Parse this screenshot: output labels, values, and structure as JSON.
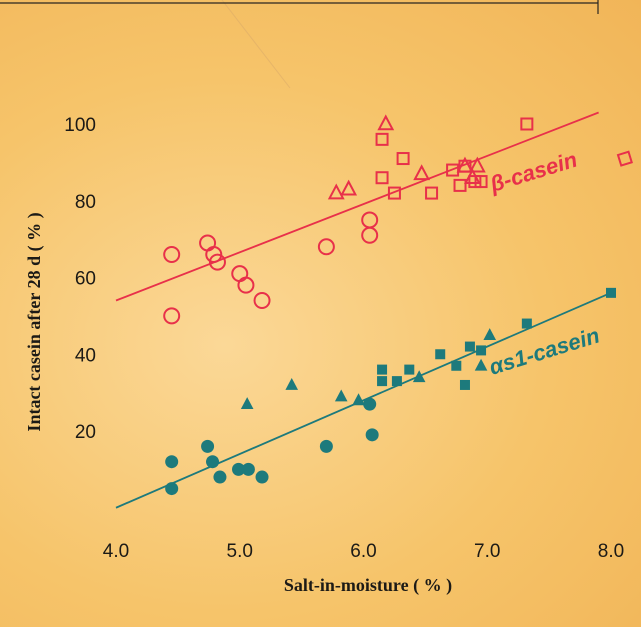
{
  "colors": {
    "beta": "#e8304a",
    "alpha": "#1d7a7c",
    "text": "#1c1a16"
  },
  "chart_data": {
    "type": "scatter",
    "title": "",
    "xlabel": "Salt-in-moisture ( % )",
    "ylabel": "Intact casein after 28 d ( % )",
    "xlim": [
      4.0,
      8.0
    ],
    "ylim": [
      0,
      110
    ],
    "x_ticks": [
      "4.0",
      "5.0",
      "6.0",
      "7.0",
      "8.0"
    ],
    "y_ticks": [
      "20",
      "40",
      "60",
      "80",
      "100"
    ],
    "x_tick_values": [
      4.0,
      5.0,
      6.0,
      7.0,
      8.0
    ],
    "y_tick_values": [
      20,
      40,
      60,
      80,
      100
    ],
    "grid": false,
    "series": [
      {
        "name": "β-casein",
        "color": "#e8304a",
        "filled": false,
        "circles": [
          [
            4.45,
            66
          ],
          [
            4.45,
            50
          ],
          [
            4.74,
            69
          ],
          [
            4.79,
            66
          ],
          [
            4.82,
            64
          ],
          [
            5.0,
            61
          ],
          [
            5.05,
            58
          ],
          [
            5.18,
            54
          ],
          [
            5.7,
            68
          ],
          [
            6.05,
            75
          ],
          [
            6.05,
            71
          ]
        ],
        "triangles": [
          [
            5.78,
            82
          ],
          [
            5.88,
            83
          ],
          [
            6.18,
            100
          ],
          [
            6.47,
            87
          ],
          [
            6.82,
            89
          ],
          [
            6.88,
            86
          ],
          [
            6.92,
            89
          ]
        ],
        "squares": [
          [
            6.15,
            96
          ],
          [
            6.15,
            86
          ],
          [
            6.25,
            82
          ],
          [
            6.32,
            91
          ],
          [
            6.55,
            82
          ],
          [
            6.72,
            88
          ],
          [
            6.78,
            84
          ],
          [
            6.82,
            89
          ],
          [
            6.9,
            85
          ],
          [
            6.95,
            85
          ],
          [
            7.32,
            100
          ]
        ],
        "trend": [
          [
            4.0,
            54
          ],
          [
            7.9,
            103
          ]
        ]
      },
      {
        "name": "αs1-casein",
        "color": "#1d7a7c",
        "filled": true,
        "circles": [
          [
            4.45,
            12
          ],
          [
            4.45,
            5
          ],
          [
            4.74,
            16
          ],
          [
            4.78,
            12
          ],
          [
            4.84,
            8
          ],
          [
            4.99,
            10
          ],
          [
            5.07,
            10
          ],
          [
            5.18,
            8
          ],
          [
            5.7,
            16
          ],
          [
            6.05,
            27
          ],
          [
            6.07,
            19
          ]
        ],
        "triangles": [
          [
            5.06,
            27
          ],
          [
            5.42,
            32
          ],
          [
            5.82,
            29
          ],
          [
            5.96,
            28
          ],
          [
            6.45,
            34
          ],
          [
            6.95,
            37
          ],
          [
            7.02,
            45
          ]
        ],
        "squares": [
          [
            6.15,
            36
          ],
          [
            6.15,
            33
          ],
          [
            6.27,
            33
          ],
          [
            6.37,
            36
          ],
          [
            6.62,
            40
          ],
          [
            6.75,
            37
          ],
          [
            6.82,
            32
          ],
          [
            6.86,
            42
          ],
          [
            6.95,
            41
          ],
          [
            7.32,
            48
          ],
          [
            8.0,
            56
          ]
        ],
        "trend": [
          [
            4.0,
            0
          ],
          [
            8.0,
            56
          ]
        ]
      }
    ]
  }
}
